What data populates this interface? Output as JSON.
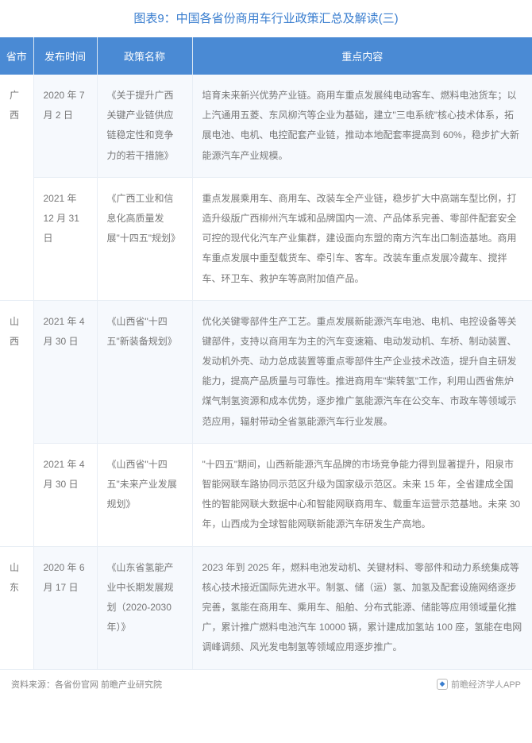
{
  "title": "图表9：中国各省份商用车行业政策汇总及解读(三)",
  "title_color": "#3a7ecf",
  "header_bg": "#4a8ad4",
  "header_text_color": "#ffffff",
  "row_alt_bg": "#f6f9fd",
  "row_bg": "#ffffff",
  "border_color": "#e8eef5",
  "text_color": "#777777",
  "columns": {
    "province": "省市",
    "date": "发布时间",
    "policy": "政策名称",
    "content": "重点内容"
  },
  "col_widths": {
    "province": 42,
    "date": 80,
    "policy": 120
  },
  "rows": [
    {
      "province": "广西",
      "rowspan": 2,
      "date": "2020 年 7 月 2 日",
      "policy": "《关于提升广西关键产业链供应链稳定性和竞争力的若干措施》",
      "content": "培育未来新兴优势产业链。商用车重点发展纯电动客车、燃料电池货车；以上汽通用五菱、东风柳汽等企业为基础，建立\"三电系统\"核心技术体系，拓展电池、电机、电控配套产业链，推动本地配套率提高到 60%，稳步扩大新能源汽车产业规模。"
    },
    {
      "date": "2021 年 12 月 31 日",
      "policy": "《广西工业和信息化高质量发展\"十四五\"规划》",
      "content": "重点发展乘用车、商用车、改装车全产业链，稳步扩大中高端车型比例，打造升级版广西柳州汽车城和品牌国内一流、产品体系完善、零部件配套安全可控的现代化汽车产业集群，建设面向东盟的南方汽车出口制造基地。商用车重点发展中重型载货车、牵引车、客车。改装车重点发展冷藏车、搅拌车、环卫车、救护车等高附加值产品。"
    },
    {
      "province": "山西",
      "rowspan": 2,
      "date": "2021 年 4 月 30 日",
      "policy": "《山西省\"十四五\"新装备规划》",
      "content": "优化关键零部件生产工艺。重点发展新能源汽车电池、电机、电控设备等关键部件，支持以商用车为主的汽车变速箱、电动发动机、车桥、制动装置、发动机外壳、动力总成装置等重点零部件生产企业技术改造，提升自主研发能力，提高产品质量与可靠性。推进商用车\"柴转氢\"工作，利用山西省焦炉煤气制氢资源和成本优势，逐步推广氢能源汽车在公交车、市政车等领域示范应用，辐射带动全省氢能源汽车行业发展。"
    },
    {
      "date": "2021 年 4 月 30 日",
      "policy": "《山西省\"十四五\"未来产业发展规划》",
      "content": "\"十四五\"期间，山西新能源汽车品牌的市场竞争能力得到显著提升，阳泉市智能网联车路协同示范区升级为国家级示范区。未来 15 年，全省建成全国性的智能网联大数据中心和智能网联商用车、载重车运营示范基地。未来 30 年，山西成为全球智能网联新能源汽车研发生产高地。"
    },
    {
      "province": "山东",
      "rowspan": 1,
      "date": "2020 年 6 月 17 日",
      "policy": "《山东省氢能产业中长期发展规划（2020-2030 年）》",
      "content": "2023 年到 2025 年，燃料电池发动机、关键材料、零部件和动力系统集成等核心技术接近国际先进水平。制氢、储（运）氢、加氢及配套设施网络逐步完善，氢能在商用车、乘用车、船舶、分布式能源、储能等应用领域量化推广，累计推广燃料电池汽车 10000 辆，累计建成加氢站 100 座，氢能在电网调峰调频、风光发电制氢等领域应用逐步推广。"
    }
  ],
  "footer": {
    "source": "资料来源：各省份官网 前瞻产业研究院",
    "brand": "前瞻经济学人APP"
  }
}
